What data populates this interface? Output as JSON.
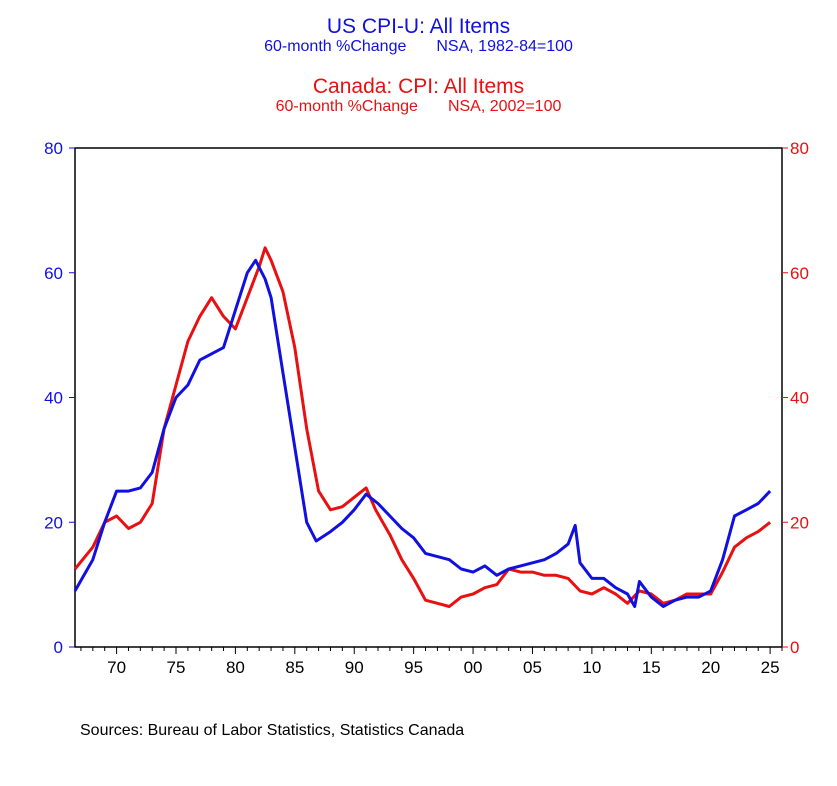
{
  "titles": {
    "us_title": "US CPI-U: All Items",
    "us_sub_left": "60-month %Change",
    "us_sub_right": "NSA, 1982-84=100",
    "ca_title": "Canada: CPI: All Items",
    "ca_sub_left": "60-month %Change",
    "ca_sub_right": "NSA, 2002=100"
  },
  "source": "Sources:  Bureau of Labor Statistics, Statistics Canada",
  "colors": {
    "us": "#1010e0",
    "canada": "#e81010",
    "frame": "#000000"
  },
  "chart_data": {
    "type": "line",
    "xlim": [
      1966.5,
      2026.0
    ],
    "ylim": [
      0,
      80
    ],
    "ylim_right": [
      0,
      80
    ],
    "x_ticks": [
      "70",
      "75",
      "80",
      "85",
      "90",
      "95",
      "00",
      "05",
      "10",
      "15",
      "20",
      "25"
    ],
    "y_ticks": [
      "0",
      "20",
      "40",
      "60",
      "80"
    ],
    "grid": false,
    "series": [
      {
        "name": "US CPI-U: All Items",
        "points": [
          [
            1966.5,
            9
          ],
          [
            1968,
            14
          ],
          [
            1969,
            20
          ],
          [
            1970,
            25
          ],
          [
            1971,
            25
          ],
          [
            1972,
            25.5
          ],
          [
            1973,
            28
          ],
          [
            1974,
            35
          ],
          [
            1975,
            40
          ],
          [
            1976,
            42
          ],
          [
            1977,
            46
          ],
          [
            1978,
            47
          ],
          [
            1979,
            48
          ],
          [
            1980,
            54
          ],
          [
            1981,
            60
          ],
          [
            1981.7,
            62
          ],
          [
            1982.5,
            59
          ],
          [
            1983,
            56
          ],
          [
            1984,
            44
          ],
          [
            1985,
            32
          ],
          [
            1986,
            20
          ],
          [
            1986.8,
            17
          ],
          [
            1988,
            18.5
          ],
          [
            1989,
            20
          ],
          [
            1990,
            22
          ],
          [
            1991,
            24.5
          ],
          [
            1992,
            23
          ],
          [
            1993,
            21
          ],
          [
            1994,
            19
          ],
          [
            1995,
            17.5
          ],
          [
            1996,
            15
          ],
          [
            1998,
            14
          ],
          [
            1999,
            12.5
          ],
          [
            2000,
            12
          ],
          [
            2001,
            13
          ],
          [
            2002,
            11.5
          ],
          [
            2003,
            12.5
          ],
          [
            2004,
            13
          ],
          [
            2005,
            13.5
          ],
          [
            2006,
            14
          ],
          [
            2007,
            15
          ],
          [
            2008,
            16.5
          ],
          [
            2008.6,
            19.5
          ],
          [
            2009,
            13.5
          ],
          [
            2010,
            11
          ],
          [
            2011,
            11
          ],
          [
            2012,
            9.5
          ],
          [
            2013,
            8.5
          ],
          [
            2013.6,
            6.5
          ],
          [
            2014,
            10.5
          ],
          [
            2015,
            8
          ],
          [
            2016,
            6.5
          ],
          [
            2017,
            7.5
          ],
          [
            2018,
            8
          ],
          [
            2019,
            8
          ],
          [
            2020,
            9
          ],
          [
            2021,
            14
          ],
          [
            2022,
            21
          ],
          [
            2023,
            22
          ],
          [
            2024,
            23
          ],
          [
            2025,
            25
          ]
        ]
      },
      {
        "name": "Canada: CPI: All Items",
        "points": [
          [
            1966.5,
            12.5
          ],
          [
            1968,
            16
          ],
          [
            1969,
            20
          ],
          [
            1970,
            21
          ],
          [
            1971,
            19
          ],
          [
            1972,
            20
          ],
          [
            1973,
            23
          ],
          [
            1974,
            35
          ],
          [
            1975,
            42
          ],
          [
            1976,
            49
          ],
          [
            1977,
            53
          ],
          [
            1978,
            56
          ],
          [
            1979,
            53
          ],
          [
            1980,
            51
          ],
          [
            1981,
            56
          ],
          [
            1982,
            61
          ],
          [
            1982.5,
            64
          ],
          [
            1983,
            62
          ],
          [
            1984,
            57
          ],
          [
            1985,
            48
          ],
          [
            1986,
            35
          ],
          [
            1987,
            25
          ],
          [
            1988,
            22
          ],
          [
            1989,
            22.5
          ],
          [
            1990,
            24
          ],
          [
            1991,
            25.5
          ],
          [
            1991.8,
            22
          ],
          [
            1993,
            18
          ],
          [
            1994,
            14
          ],
          [
            1995,
            11
          ],
          [
            1996,
            7.5
          ],
          [
            1997,
            7
          ],
          [
            1998,
            6.5
          ],
          [
            1999,
            8
          ],
          [
            2000,
            8.5
          ],
          [
            2001,
            9.5
          ],
          [
            2002,
            10
          ],
          [
            2003,
            12.5
          ],
          [
            2004,
            12
          ],
          [
            2005,
            12
          ],
          [
            2006,
            11.5
          ],
          [
            2007,
            11.5
          ],
          [
            2008,
            11
          ],
          [
            2009,
            9
          ],
          [
            2010,
            8.5
          ],
          [
            2011,
            9.5
          ],
          [
            2012,
            8.5
          ],
          [
            2013,
            7
          ],
          [
            2014,
            9
          ],
          [
            2015,
            8.5
          ],
          [
            2016,
            7
          ],
          [
            2017,
            7.5
          ],
          [
            2018,
            8.5
          ],
          [
            2019,
            8.5
          ],
          [
            2020,
            8.5
          ],
          [
            2021,
            12
          ],
          [
            2022,
            16
          ],
          [
            2023,
            17.5
          ],
          [
            2024,
            18.5
          ],
          [
            2025,
            20
          ]
        ]
      }
    ]
  }
}
